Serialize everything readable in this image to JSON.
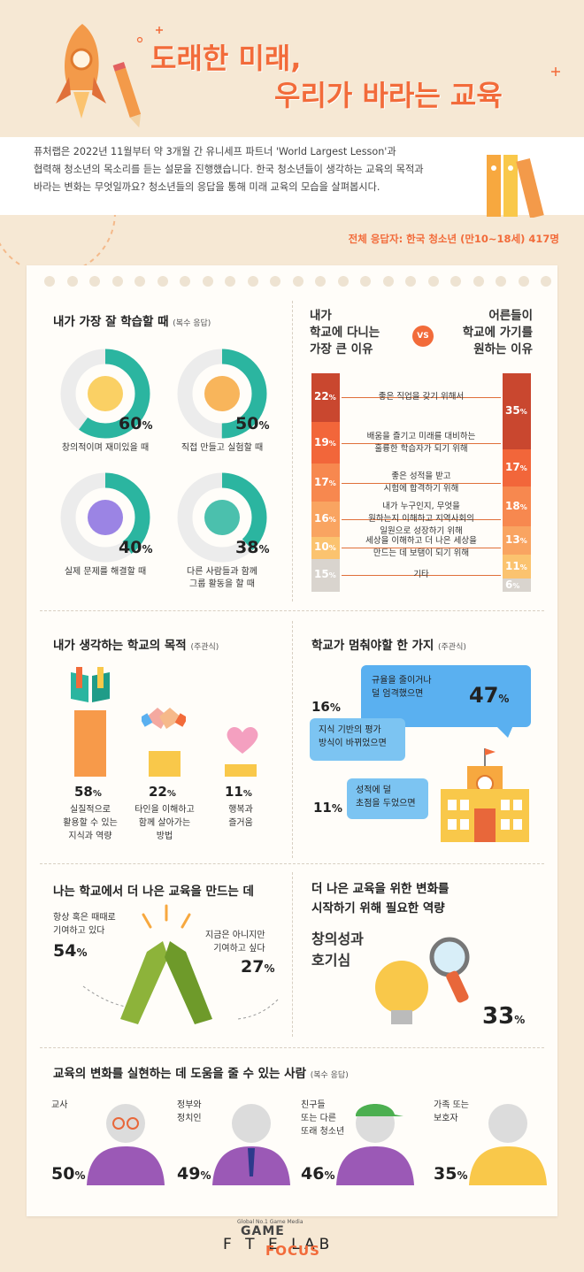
{
  "header": {
    "title_line1": "도래한 미래,",
    "title_line2": "우리가 바라는 교육"
  },
  "intro": {
    "line1": "퓨처랩은 2022년 11월부터 약 3개월 간 유니세프 파트너 'World Largest Lesson'과",
    "line2": "협력해 청소년의 목소리를 듣는 설문을 진행했습니다. 한국 청소년들이 생각하는 교육의 목적과",
    "line3": "바라는 변화는 무엇일까요? 청소년들의 응답을 통해 미래 교육의 모습을 살펴봅시다."
  },
  "sample": "전체 응답자: 한국 청소년 (만10~18세) 417명",
  "colors": {
    "accent": "#f26b3a",
    "teal": "#2bb5a0",
    "orange_bar": "#f79a4a",
    "yellow_bar": "#f9c84a",
    "pink": "#f4a0c0",
    "blue_bubble": "#5ab0f0",
    "green": "#8db33a"
  },
  "chart_data": [
    {
      "type": "pie",
      "title": "내가 가장 잘 학습할 때",
      "subtitle": "(복수 응답)",
      "categories": [
        "창의적이며 재미있을 때",
        "직접 만들고 실험할 때",
        "실제 문제를 해결할 때",
        "다른 사람들과 함께 그룹 활동을 할 때"
      ],
      "values": [
        60,
        50,
        40,
        38
      ],
      "pct_labels": [
        "60",
        "50",
        "40",
        "38"
      ],
      "label_lines": [
        [
          "창의적이며 재미있을 때"
        ],
        [
          "직접 만들고 실험할 때"
        ],
        [
          "실제 문제를 해결할 때"
        ],
        [
          "다른 사람들과 함께",
          "그룹 활동을 할 때"
        ]
      ]
    },
    {
      "type": "bar",
      "title_left": [
        "내가",
        "학교에 다니는",
        "가장 큰 이유"
      ],
      "vs": "VS",
      "title_right": [
        "어른들이",
        "학교에 가기를",
        "원하는 이유"
      ],
      "categories": [
        [
          "좋은 직업을 갖기 위해서"
        ],
        [
          "배움을 즐기고 미래를 대비하는",
          "훌륭한 학습자가 되기 위해"
        ],
        [
          "좋은 성적을 받고",
          "시험에 합격하기 위해"
        ],
        [
          "내가 누구인지, 무엇을",
          "원하는지 이해하고 지역사회의",
          "일원으로 성장하기 위해"
        ],
        [
          "세상을 이해하고 더 나은 세상을",
          "만드는 데 보탬이 되기 위해"
        ],
        [
          "기타"
        ]
      ],
      "series": [
        {
          "name": "내가 학교에 다니는 가장 큰 이유",
          "values": [
            22,
            19,
            17,
            16,
            10,
            15
          ]
        },
        {
          "name": "어른들이 학교에 가기를 원하는 이유",
          "values": [
            35,
            17,
            18,
            13,
            11,
            6
          ]
        }
      ],
      "colors": [
        "#c9472f",
        "#f2663a",
        "#f7884f",
        "#f9a461",
        "#fbc36f",
        "#d9d4ce"
      ],
      "pct_unit": "%"
    },
    {
      "type": "bar",
      "title": "내가 생각하는 학교의 목적",
      "subtitle": "(주관식)",
      "categories": [
        [
          "실질적으로",
          "활용할 수 있는",
          "지식과 역량"
        ],
        [
          "타인을 이해하고",
          "함께 살아가는",
          "방법"
        ],
        [
          "행복과",
          "즐거움"
        ]
      ],
      "values": [
        58,
        22,
        11
      ],
      "pct_labels": [
        "58",
        "22",
        "11"
      ]
    },
    {
      "type": "bar",
      "title": "학교가 멈춰야할 한 가지",
      "subtitle": "(주관식)",
      "categories": [
        [
          "규율을 줄이거나",
          "덜 엄격했으면"
        ],
        [
          "지식 기반의 평가",
          "방식이 바뀌었으면"
        ],
        [
          "성적에 덜",
          "초점을 두었으면"
        ]
      ],
      "values": [
        47,
        16,
        11
      ],
      "pct_labels": [
        "47",
        "16",
        "11"
      ]
    },
    {
      "type": "bar",
      "title": "나는 학교에서 더 나은 교육을 만드는 데",
      "categories": [
        [
          "항상 혹은 때때로",
          "기여하고 있다"
        ],
        [
          "지금은 아니지만",
          "기여하고 싶다"
        ]
      ],
      "values": [
        54,
        27
      ],
      "pct_labels": [
        "54",
        "27"
      ]
    },
    {
      "type": "bar",
      "title": "더 나은 교육을 위한 변화를 시작하기 위해 필요한 역량",
      "title_lines": [
        "더 나은 교육을 위한 변화를",
        "시작하기 위해 필요한 역량"
      ],
      "categories": [
        [
          "창의성과",
          "호기심"
        ]
      ],
      "values": [
        33
      ],
      "pct_labels": [
        "33"
      ]
    },
    {
      "type": "bar",
      "title": "교육의 변화를 실현하는 데 도움을 줄 수 있는 사람",
      "subtitle": "(복수 응답)",
      "categories": [
        [
          "교사"
        ],
        [
          "정부와",
          "정치인"
        ],
        [
          "친구들",
          "또는 다른",
          "또래 청소년"
        ],
        [
          "가족 또는",
          "보호자"
        ]
      ],
      "values": [
        50,
        49,
        46,
        35
      ],
      "pct_labels": [
        "50",
        "49",
        "46",
        "35"
      ]
    }
  ],
  "footer": {
    "logo_top": "Global No.1 Game Media",
    "logo_game": "GAME",
    "logo_future": "F T  E LAB",
    "logo_focus": "FOCUS"
  }
}
